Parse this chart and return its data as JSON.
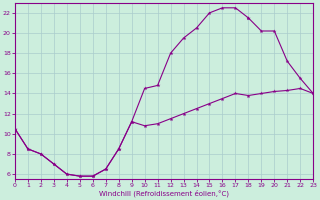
{
  "xlabel": "Windchill (Refroidissement éolien,°C)",
  "bg_color": "#cceedd",
  "line_color": "#880088",
  "grid_color": "#aacccc",
  "xlim": [
    0,
    23
  ],
  "ylim": [
    5.5,
    23.0
  ],
  "yticks": [
    6,
    8,
    10,
    12,
    14,
    16,
    18,
    20,
    22
  ],
  "xticks": [
    0,
    1,
    2,
    3,
    4,
    5,
    6,
    7,
    8,
    9,
    10,
    11,
    12,
    13,
    14,
    15,
    16,
    17,
    18,
    19,
    20,
    21,
    22,
    23
  ],
  "curve1_x": [
    0,
    1,
    2,
    3,
    4,
    5,
    6,
    7,
    8,
    9,
    10,
    11,
    12,
    13,
    14,
    15,
    16,
    17,
    18
  ],
  "curve1_y": [
    10.5,
    8.5,
    8.0,
    7.0,
    6.0,
    5.8,
    5.8,
    6.5,
    8.5,
    11.2,
    14.5,
    14.8,
    18.0,
    19.5,
    20.5,
    22.0,
    22.5,
    22.5,
    21.5
  ],
  "curve2_x": [
    0,
    1,
    2,
    3,
    4,
    5,
    6,
    7,
    8,
    9,
    10,
    11,
    12,
    13,
    14,
    15,
    16,
    17,
    18,
    19,
    20,
    21,
    22,
    23
  ],
  "curve2_y": [
    10.5,
    8.5,
    8.0,
    7.0,
    6.0,
    5.8,
    5.8,
    6.5,
    8.5,
    11.2,
    10.8,
    11.0,
    11.5,
    12.0,
    12.5,
    13.0,
    13.5,
    14.0,
    13.8,
    14.0,
    14.2,
    14.3,
    14.5,
    14.0
  ],
  "curve3_x": [
    18,
    19,
    20,
    21,
    22,
    23
  ],
  "curve3_y": [
    21.5,
    20.2,
    20.2,
    17.2,
    15.5,
    14.0
  ]
}
